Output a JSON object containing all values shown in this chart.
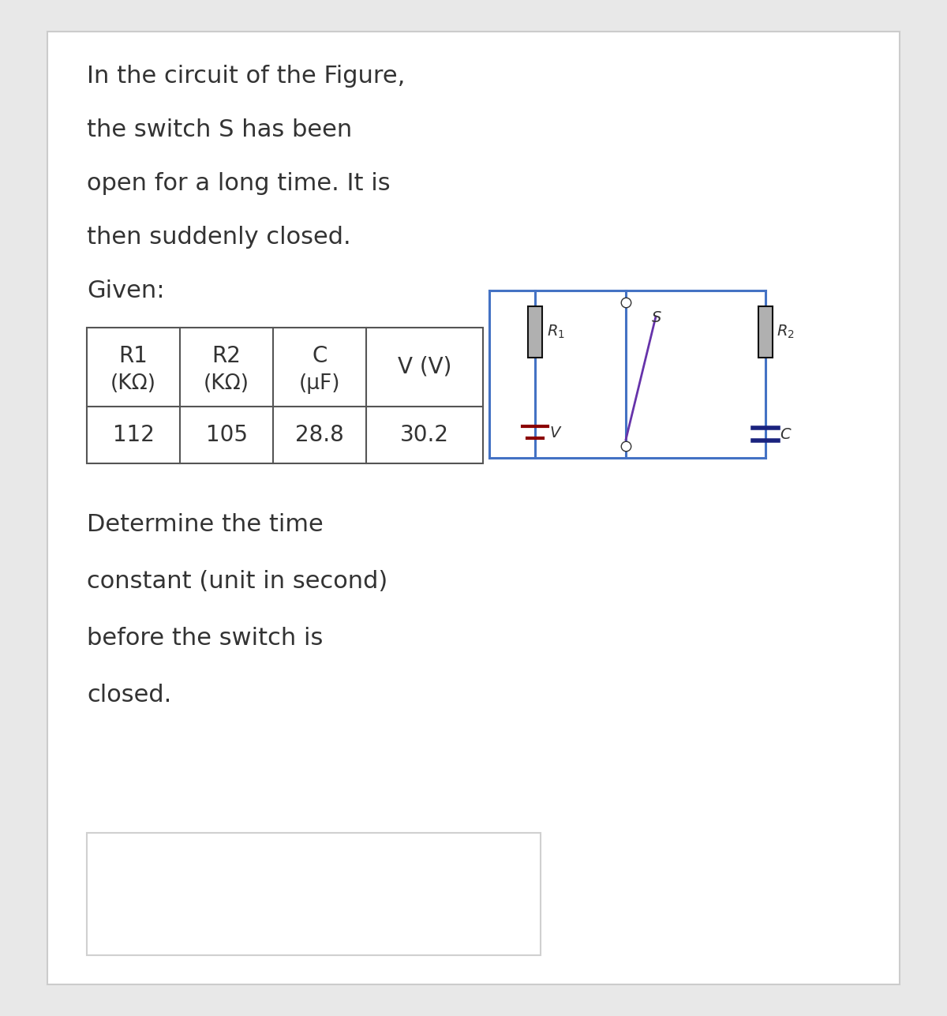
{
  "bg_color": "#e8e8e8",
  "card_color": "#ffffff",
  "card_border_color": "#cccccc",
  "text_color": "#333333",
  "intro_lines": [
    "In the circuit of the Figure,",
    "the switch S has been",
    "open for a long time. It is",
    "then suddenly closed.",
    "Given:"
  ],
  "table_col1_h1": "R1",
  "table_col1_h2": "(KΩ)",
  "table_col2_h1": "R2",
  "table_col2_h2": "(KΩ)",
  "table_col3_h1": "C",
  "table_col3_h2": "(μF)",
  "table_col4_h1": "V (V)",
  "table_col4_h2": "",
  "table_val1": "112",
  "table_val2": "105",
  "table_val3": "28.8",
  "table_val4": "30.2",
  "question_lines": [
    "Determine the time",
    "constant (unit in second)",
    "before the switch is",
    "closed."
  ],
  "wire_color": "#4472c4",
  "resistor_fill": "#b0b0b0",
  "resistor_edge": "#111111",
  "voltage_color": "#8b0000",
  "capacitor_color": "#1a237e",
  "switch_color": "#6633aa",
  "body_fontsize": 22,
  "table_fontsize": 20,
  "circuit_label_fontsize": 14,
  "answer_box_color": "#d0d0d0"
}
